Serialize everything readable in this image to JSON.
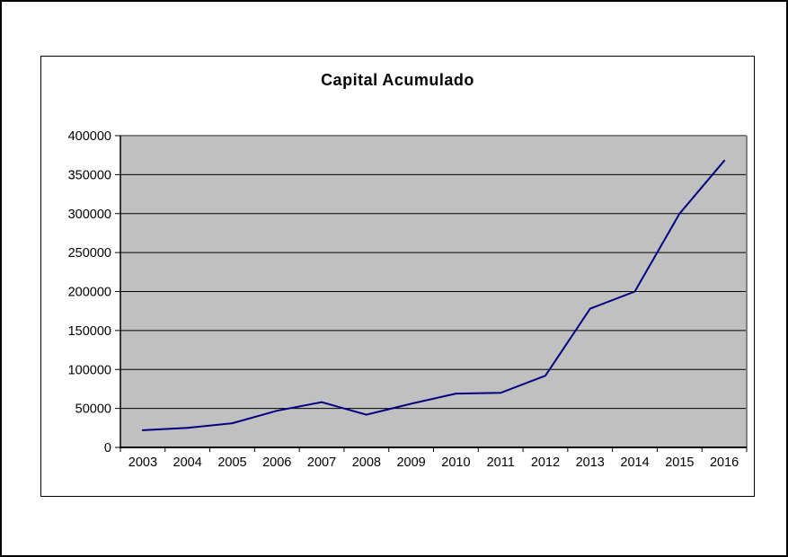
{
  "chart": {
    "title": "Capital Acumulado",
    "colors": {
      "line": "#000080",
      "plot_background": "#C0C0C0",
      "gridline": "#000000",
      "plot_border": "#808080",
      "axis": "#000000",
      "text": "#000000",
      "chart_border": "#000000",
      "page_background": "#FFFFFF"
    }
  },
  "chart_data": {
    "type": "line",
    "title": "Capital Acumulado",
    "categories": [
      "2003",
      "2004",
      "2005",
      "2006",
      "2007",
      "2008",
      "2009",
      "2010",
      "2011",
      "2012",
      "2013",
      "2014",
      "2015",
      "2016"
    ],
    "series": [
      {
        "name": "Capital Acumulado",
        "values": [
          22000,
          25000,
          31000,
          47000,
          58000,
          42000,
          56000,
          69000,
          70000,
          92000,
          178000,
          200000,
          300000,
          368000
        ]
      }
    ],
    "xlabel": "",
    "ylabel": "",
    "ylim": [
      0,
      400000
    ],
    "ytick_step": 50000,
    "ytick_labels": [
      "0",
      "50000",
      "100000",
      "150000",
      "200000",
      "250000",
      "300000",
      "350000",
      "400000"
    ],
    "grid": true,
    "legend": false
  }
}
